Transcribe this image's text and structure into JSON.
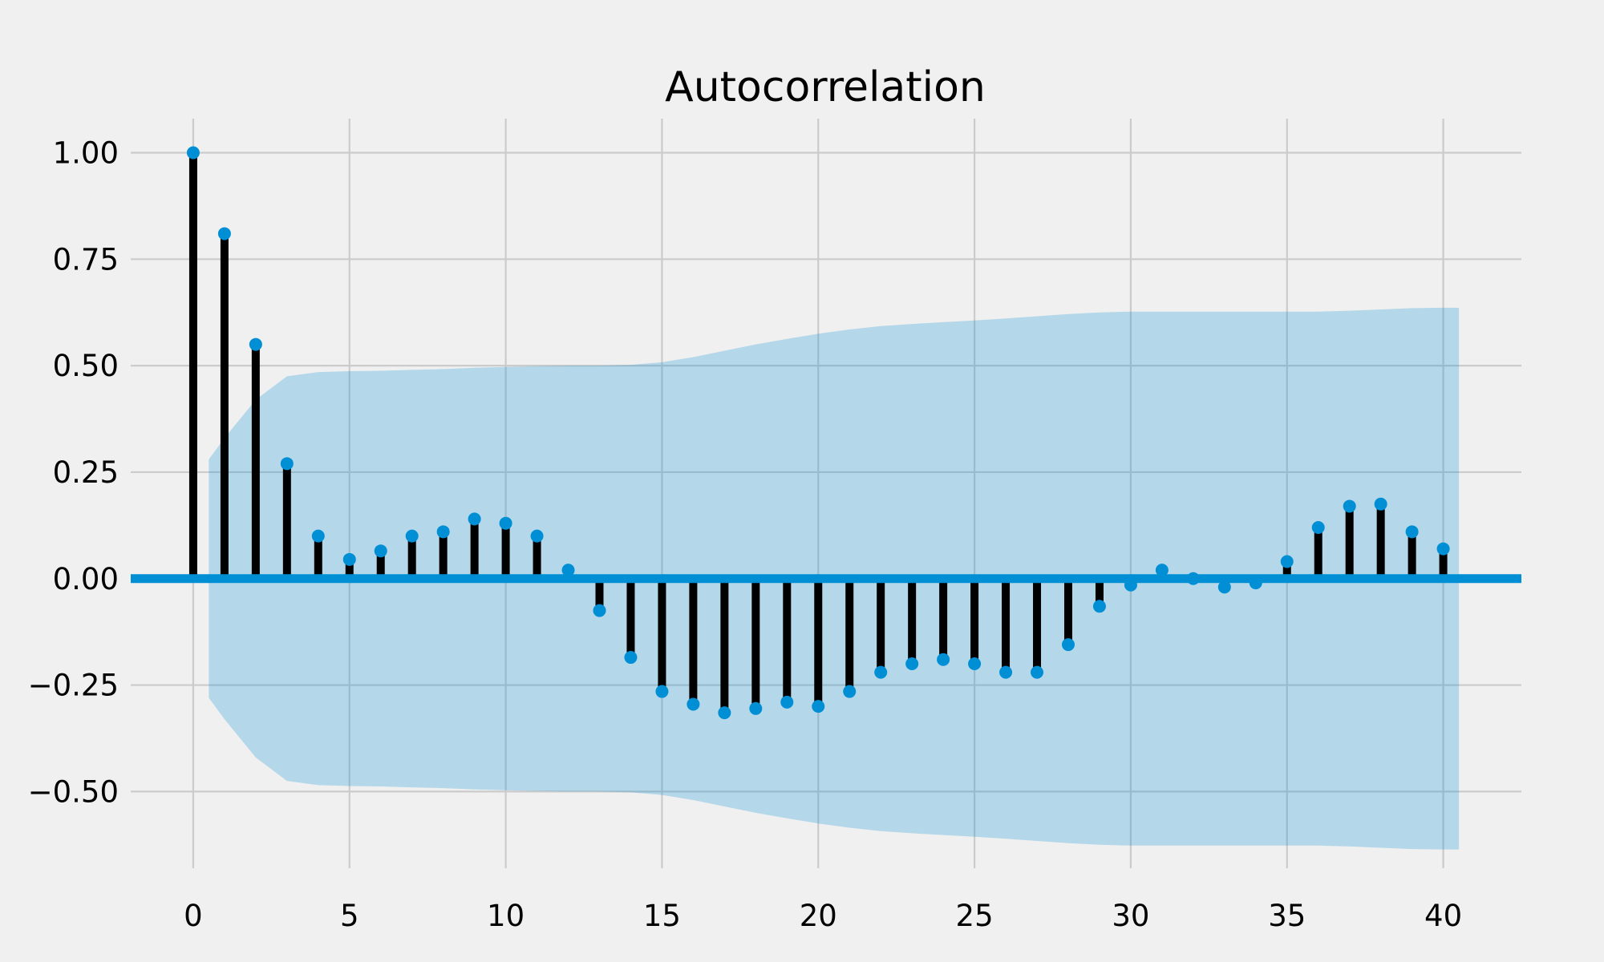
{
  "colors": {
    "background": "#f0f0f0",
    "grid": "#cbcbcb",
    "stem": "#000000",
    "marker": "#008fd5",
    "zero_line": "#008fd5",
    "confidence_band": "#008fd5",
    "text": "#000000"
  },
  "chart_data": {
    "type": "stem",
    "title": "Autocorrelation",
    "xlabel": "",
    "ylabel": "",
    "xlim": [
      -2,
      42.5
    ],
    "ylim": [
      -0.68,
      1.08
    ],
    "grid": true,
    "x_ticks": [
      0,
      5,
      10,
      15,
      20,
      25,
      30,
      35,
      40
    ],
    "x_tick_labels": [
      "0",
      "5",
      "10",
      "15",
      "20",
      "25",
      "30",
      "35",
      "40"
    ],
    "y_ticks": [
      1.0,
      0.75,
      0.5,
      0.25,
      0.0,
      -0.25,
      -0.5
    ],
    "y_tick_labels": [
      "1.00",
      "0.75",
      "0.50",
      "0.25",
      "0.00",
      "−0.25",
      "−0.50"
    ],
    "lags": [
      0,
      1,
      2,
      3,
      4,
      5,
      6,
      7,
      8,
      9,
      10,
      11,
      12,
      13,
      14,
      15,
      16,
      17,
      18,
      19,
      20,
      21,
      22,
      23,
      24,
      25,
      26,
      27,
      28,
      29,
      30,
      31,
      32,
      33,
      34,
      35,
      36,
      37,
      38,
      39,
      40
    ],
    "values": [
      1.0,
      0.81,
      0.55,
      0.27,
      0.1,
      0.045,
      0.065,
      0.1,
      0.11,
      0.14,
      0.13,
      0.1,
      0.02,
      -0.075,
      -0.185,
      -0.265,
      -0.295,
      -0.315,
      -0.305,
      -0.29,
      -0.3,
      -0.265,
      -0.22,
      -0.2,
      -0.19,
      -0.2,
      -0.22,
      -0.22,
      -0.155,
      -0.065,
      -0.015,
      0.02,
      0.0,
      -0.02,
      -0.01,
      0.04,
      0.12,
      0.17,
      0.175,
      0.11,
      0.07
    ],
    "confidence_interval": {
      "lags": [
        0.5,
        1,
        2,
        3,
        4,
        5,
        6,
        7,
        8,
        9,
        10,
        11,
        12,
        13,
        14,
        15,
        16,
        17,
        18,
        19,
        20,
        21,
        22,
        23,
        24,
        25,
        26,
        27,
        28,
        29,
        30,
        31,
        32,
        33,
        34,
        35,
        36,
        37,
        38,
        39,
        40,
        40.5
      ],
      "upper": [
        0.28,
        0.33,
        0.42,
        0.475,
        0.485,
        0.487,
        0.488,
        0.49,
        0.492,
        0.495,
        0.497,
        0.499,
        0.5,
        0.5,
        0.502,
        0.508,
        0.52,
        0.535,
        0.55,
        0.563,
        0.575,
        0.585,
        0.593,
        0.598,
        0.602,
        0.606,
        0.611,
        0.616,
        0.621,
        0.625,
        0.627,
        0.627,
        0.627,
        0.627,
        0.627,
        0.627,
        0.627,
        0.629,
        0.632,
        0.635,
        0.636,
        0.636
      ]
    }
  }
}
